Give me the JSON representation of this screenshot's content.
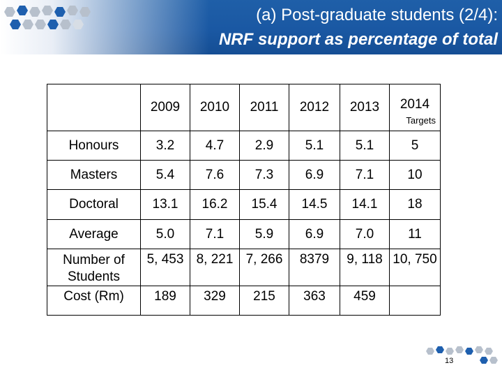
{
  "header": {
    "title_line1": "(a) Post-graduate students (2/4):",
    "title_line2": "NRF support as percentage of total"
  },
  "table": {
    "columns": [
      "2009",
      "2010",
      "2011",
      "2012",
      "2013",
      "2014"
    ],
    "column_note": "Targets",
    "rows": [
      {
        "label": "Honours",
        "values": [
          "3.2",
          "4.7",
          "2.9",
          "5.1",
          "5.1",
          "5"
        ]
      },
      {
        "label": "Masters",
        "values": [
          "5.4",
          "7.6",
          "7.3",
          "6.9",
          "7.1",
          "10"
        ]
      },
      {
        "label": "Doctoral",
        "values": [
          "13.1",
          "16.2",
          "15.4",
          "14.5",
          "14.1",
          "18"
        ]
      },
      {
        "label": "Average",
        "values": [
          "5.0",
          "7.1",
          "5.9",
          "6.9",
          "7.0",
          "11"
        ]
      },
      {
        "label": "Number of Students",
        "values": [
          "5, 453",
          "8, 221",
          "7, 266",
          "8379",
          "9, 118",
          "10, 750"
        ]
      },
      {
        "label": "Cost (Rm)",
        "values": [
          "189",
          "329",
          "215",
          "363",
          "459",
          ""
        ]
      }
    ]
  },
  "footer": {
    "slide_number": "13"
  },
  "colors": {
    "header_blue": "#1a58a3",
    "hex_gray": "#b7c0cc",
    "hex_blue": "#1e5fae"
  }
}
